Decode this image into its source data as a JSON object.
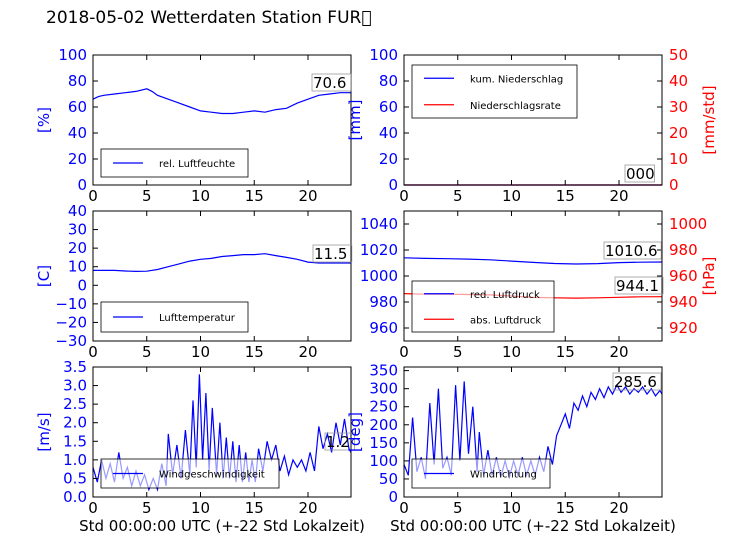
{
  "title": "2018-05-02 Wetterdaten Station FUR\u0000",
  "colors": {
    "primary": "#0000ff",
    "secondary": "#ff0000",
    "frame": "#000000"
  },
  "chart_data": [
    {
      "id": "humidity",
      "type": "line",
      "x_ticks": [
        "0",
        "5",
        "10",
        "15",
        "20"
      ],
      "xlim": [
        0,
        24
      ],
      "y_ticks": [
        "0",
        "20",
        "40",
        "60",
        "80",
        "100"
      ],
      "ylim": [
        0,
        100
      ],
      "ylabel": "[%]",
      "ylabel_color": "#0000ff",
      "legend": [
        "rel. Luftfeuchte"
      ],
      "legend_position": "lower-left",
      "annotation": "70.6",
      "series": [
        {
          "name": "rel. Luftfeuchte",
          "color": "#0000ff",
          "points": [
            [
              0,
              66
            ],
            [
              0.5,
              68
            ],
            [
              1,
              69
            ],
            [
              2,
              70
            ],
            [
              3,
              71
            ],
            [
              4,
              72
            ],
            [
              5,
              74
            ],
            [
              5.5,
              72
            ],
            [
              6,
              69
            ],
            [
              7,
              66
            ],
            [
              8,
              63
            ],
            [
              9,
              60
            ],
            [
              10,
              57
            ],
            [
              11,
              56
            ],
            [
              12,
              55
            ],
            [
              13,
              55
            ],
            [
              14,
              56
            ],
            [
              15,
              57
            ],
            [
              16,
              56
            ],
            [
              17,
              58
            ],
            [
              18,
              59
            ],
            [
              19,
              63
            ],
            [
              20,
              66
            ],
            [
              21,
              69
            ],
            [
              22,
              70
            ],
            [
              23,
              71
            ],
            [
              24,
              71
            ]
          ]
        }
      ]
    },
    {
      "id": "precipitation",
      "type": "line",
      "x_ticks": [
        "0",
        "5",
        "10",
        "15",
        "20"
      ],
      "xlim": [
        0,
        24
      ],
      "y_ticks": [
        "0",
        "20",
        "40",
        "60",
        "80",
        "100"
      ],
      "ylim": [
        0,
        100
      ],
      "ylabel": "[mm]",
      "ylabel_color": "#0000ff",
      "y2_ticks": [
        "0",
        "10",
        "20",
        "30",
        "40",
        "50"
      ],
      "y2lim": [
        0,
        50
      ],
      "y2label": "[mm/std]",
      "y2label_color": "#ff0000",
      "legend": [
        "kum. Niederschlag",
        "Niederschlagsrate"
      ],
      "legend_position": "upper-left",
      "annotation": "000",
      "series": [
        {
          "name": "kum. Niederschlag",
          "color": "#0000ff",
          "points": [
            [
              0,
              0
            ],
            [
              24,
              0
            ]
          ]
        },
        {
          "name": "Niederschlagsrate",
          "color": "#ff0000",
          "points": [
            [
              0,
              0
            ],
            [
              24,
              0
            ]
          ]
        }
      ]
    },
    {
      "id": "temperature",
      "type": "line",
      "x_ticks": [
        "0",
        "5",
        "10",
        "15",
        "20"
      ],
      "xlim": [
        0,
        24
      ],
      "y_ticks": [
        "−30",
        "−20",
        "−10",
        "0",
        "10",
        "20",
        "30",
        "40"
      ],
      "ylim": [
        -30,
        40
      ],
      "ylabel": "[C]",
      "ylabel_color": "#0000ff",
      "legend": [
        "Lufttemperatur"
      ],
      "legend_position": "lower-left",
      "annotation": "11.5",
      "series": [
        {
          "name": "Lufttemperatur",
          "color": "#0000ff",
          "points": [
            [
              0,
              8
            ],
            [
              1,
              8
            ],
            [
              2,
              8
            ],
            [
              3,
              7.7
            ],
            [
              4,
              7.5
            ],
            [
              5,
              7.6
            ],
            [
              6,
              8.5
            ],
            [
              7,
              10
            ],
            [
              8,
              11.5
            ],
            [
              9,
              13
            ],
            [
              10,
              14
            ],
            [
              11,
              14.5
            ],
            [
              12,
              15.5
            ],
            [
              13,
              16
            ],
            [
              14,
              16.5
            ],
            [
              15,
              16.5
            ],
            [
              16,
              17
            ],
            [
              17,
              16
            ],
            [
              18,
              15
            ],
            [
              19,
              14
            ],
            [
              20,
              12.5
            ],
            [
              21,
              12
            ],
            [
              22,
              12
            ],
            [
              23,
              12
            ],
            [
              24,
              12
            ]
          ]
        }
      ]
    },
    {
      "id": "pressure",
      "type": "line",
      "x_ticks": [
        "0",
        "5",
        "10",
        "15",
        "20"
      ],
      "xlim": [
        0,
        24
      ],
      "y_ticks": [
        "960",
        "980",
        "1000",
        "1020",
        "1040"
      ],
      "ylim": [
        950,
        1050
      ],
      "y2_ticks": [
        "920",
        "940",
        "960",
        "980",
        "1000"
      ],
      "y2lim": [
        910,
        1010
      ],
      "y2label": "[hPa]",
      "y2label_color": "#ff0000",
      "legend": [
        "red. Luftdruck",
        "abs. Luftdruck"
      ],
      "legend_position": "lower-left",
      "annotations": [
        "1010.6",
        "944.1"
      ],
      "series": [
        {
          "name": "red. Luftdruck",
          "color": "#0000ff",
          "points": [
            [
              0,
              1014
            ],
            [
              2,
              1013.5
            ],
            [
              4,
              1013.3
            ],
            [
              6,
              1013
            ],
            [
              8,
              1012.5
            ],
            [
              10,
              1011.5
            ],
            [
              12,
              1010.5
            ],
            [
              14,
              1009.6
            ],
            [
              16,
              1009.2
            ],
            [
              18,
              1009.5
            ],
            [
              20,
              1010.3
            ],
            [
              22,
              1010.6
            ],
            [
              24,
              1010.8
            ]
          ]
        },
        {
          "name": "abs. Luftdruck",
          "color": "#ff0000",
          "axis": "y2",
          "points": [
            [
              0,
              946.5
            ],
            [
              2,
              946
            ],
            [
              4,
              946
            ],
            [
              6,
              945.8
            ],
            [
              8,
              945.5
            ],
            [
              10,
              944.6
            ],
            [
              12,
              943.5
            ],
            [
              14,
              943.2
            ],
            [
              16,
              943
            ],
            [
              18,
              943.2
            ],
            [
              20,
              943.6
            ],
            [
              22,
              944
            ],
            [
              24,
              944.1
            ]
          ]
        }
      ]
    },
    {
      "id": "windspeed",
      "type": "line",
      "x_ticks": [
        "0",
        "5",
        "10",
        "15",
        "20"
      ],
      "xlim": [
        0,
        24
      ],
      "y_ticks": [
        "0.0",
        "0.5",
        "1.0",
        "1.5",
        "2.0",
        "2.5",
        "3.0",
        "3.5"
      ],
      "ylim": [
        0,
        3.5
      ],
      "ylabel": "[m/s]",
      "ylabel_color": "#0000ff",
      "xlabel": "Std 00:00:00 UTC (+-22 Std Lokalzeit)",
      "legend": [
        "Windgeschwindigkeit"
      ],
      "legend_position": "lower-left",
      "annotation": "1.2",
      "series": [
        {
          "name": "Windgeschwindigkeit",
          "color": "#0000ff",
          "points": [
            [
              0,
              0.8
            ],
            [
              0.4,
              0.4
            ],
            [
              0.8,
              1.0
            ],
            [
              1.2,
              0.5
            ],
            [
              1.6,
              0.9
            ],
            [
              2,
              0.4
            ],
            [
              2.4,
              1.2
            ],
            [
              2.8,
              0.5
            ],
            [
              3.2,
              0.8
            ],
            [
              3.6,
              0.3
            ],
            [
              4,
              0.7
            ],
            [
              4.4,
              0.3
            ],
            [
              4.8,
              0.6
            ],
            [
              5.2,
              0.2
            ],
            [
              5.6,
              0.5
            ],
            [
              6,
              0.2
            ],
            [
              6.4,
              0.9
            ],
            [
              6.8,
              0.3
            ],
            [
              7,
              1.7
            ],
            [
              7.4,
              0.6
            ],
            [
              7.8,
              1.4
            ],
            [
              8.2,
              0.5
            ],
            [
              8.6,
              1.8
            ],
            [
              9,
              0.6
            ],
            [
              9.3,
              2.6
            ],
            [
              9.6,
              0.8
            ],
            [
              9.9,
              3.3
            ],
            [
              10.2,
              1.0
            ],
            [
              10.5,
              2.8
            ],
            [
              10.8,
              0.7
            ],
            [
              11.1,
              2.4
            ],
            [
              11.5,
              0.6
            ],
            [
              11.8,
              2.0
            ],
            [
              12.1,
              0.5
            ],
            [
              12.4,
              1.6
            ],
            [
              12.7,
              0.5
            ],
            [
              13,
              1.5
            ],
            [
              13.3,
              0.4
            ],
            [
              13.6,
              1.4
            ],
            [
              13.9,
              0.4
            ],
            [
              14.2,
              1.2
            ],
            [
              14.5,
              0.4
            ],
            [
              14.8,
              1.0
            ],
            [
              15.1,
              0.4
            ],
            [
              15.4,
              1.3
            ],
            [
              15.8,
              0.7
            ],
            [
              16.2,
              1.5
            ],
            [
              16.6,
              1.0
            ],
            [
              17,
              1.4
            ],
            [
              17.4,
              0.7
            ],
            [
              17.8,
              1.1
            ],
            [
              18.2,
              0.6
            ],
            [
              18.6,
              1.0
            ],
            [
              19,
              0.8
            ],
            [
              19.4,
              1.0
            ],
            [
              19.8,
              0.7
            ],
            [
              20.2,
              1.2
            ],
            [
              20.6,
              0.7
            ],
            [
              21,
              1.9
            ],
            [
              21.4,
              1.3
            ],
            [
              21.8,
              1.7
            ],
            [
              22.2,
              1.2
            ],
            [
              22.6,
              2.0
            ],
            [
              23,
              1.4
            ],
            [
              23.4,
              2.1
            ],
            [
              23.8,
              1.3
            ],
            [
              24,
              1.2
            ]
          ]
        }
      ]
    },
    {
      "id": "winddirection",
      "type": "line",
      "x_ticks": [
        "0",
        "5",
        "10",
        "15",
        "20"
      ],
      "xlim": [
        0,
        24
      ],
      "y_ticks": [
        "0",
        "50",
        "100",
        "150",
        "200",
        "250",
        "300",
        "350"
      ],
      "ylim": [
        0,
        360
      ],
      "ylabel": "[deg]",
      "ylabel_color": "#0000ff",
      "xlabel": "Std 00:00:00 UTC (+-22 Std Lokalzeit)",
      "legend": [
        "Windrichtung"
      ],
      "legend_position": "lower-left",
      "annotation": "285.6",
      "series": [
        {
          "name": "Windrichtung",
          "color": "#0000ff",
          "points": [
            [
              0,
              90
            ],
            [
              0.4,
              60
            ],
            [
              0.8,
              220
            ],
            [
              1.2,
              70
            ],
            [
              1.6,
              110
            ],
            [
              2,
              50
            ],
            [
              2.4,
              260
            ],
            [
              2.8,
              90
            ],
            [
              3.2,
              300
            ],
            [
              3.6,
              80
            ],
            [
              4,
              110
            ],
            [
              4.4,
              60
            ],
            [
              4.8,
              310
            ],
            [
              5.2,
              100
            ],
            [
              5.6,
              320
            ],
            [
              6,
              120
            ],
            [
              6.4,
              250
            ],
            [
              6.8,
              70
            ],
            [
              7,
              180
            ],
            [
              7.4,
              60
            ],
            [
              7.8,
              130
            ],
            [
              8.2,
              60
            ],
            [
              8.6,
              110
            ],
            [
              9,
              55
            ],
            [
              9.4,
              100
            ],
            [
              9.8,
              55
            ],
            [
              10.2,
              100
            ],
            [
              10.6,
              60
            ],
            [
              11,
              110
            ],
            [
              11.4,
              60
            ],
            [
              11.8,
              100
            ],
            [
              12.2,
              60
            ],
            [
              12.6,
              110
            ],
            [
              13,
              70
            ],
            [
              13.4,
              140
            ],
            [
              13.8,
              90
            ],
            [
              14.2,
              170
            ],
            [
              14.6,
              200
            ],
            [
              15,
              230
            ],
            [
              15.4,
              190
            ],
            [
              15.8,
              260
            ],
            [
              16.2,
              240
            ],
            [
              16.6,
              280
            ],
            [
              17,
              250
            ],
            [
              17.4,
              290
            ],
            [
              17.8,
              270
            ],
            [
              18.2,
              300
            ],
            [
              18.6,
              275
            ],
            [
              19,
              305
            ],
            [
              19.4,
              285
            ],
            [
              19.8,
              310
            ],
            [
              20.2,
              290
            ],
            [
              20.6,
              305
            ],
            [
              21,
              285
            ],
            [
              21.4,
              300
            ],
            [
              21.8,
              290
            ],
            [
              22.2,
              305
            ],
            [
              22.6,
              285
            ],
            [
              23,
              300
            ],
            [
              23.4,
              280
            ],
            [
              23.8,
              295
            ],
            [
              24,
              285
            ]
          ]
        }
      ]
    }
  ]
}
